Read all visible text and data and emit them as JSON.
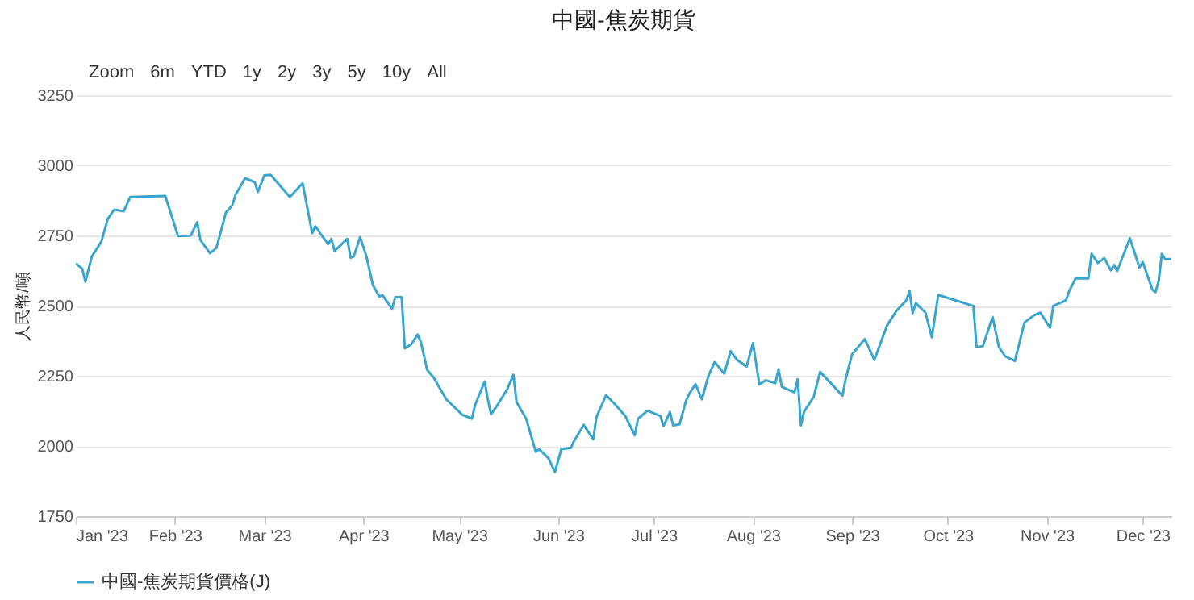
{
  "chart_data": {
    "type": "line",
    "title": "中國-焦炭期貨",
    "ylabel": "人民幣/噸",
    "annotations": [
      "Zoom",
      "6m",
      "YTD",
      "1y",
      "2y",
      "3y",
      "5y",
      "10y",
      "All"
    ],
    "x": [
      "2023-01-01",
      "2023-01-03",
      "2023-01-04",
      "2023-01-06",
      "2023-01-09",
      "2023-01-11",
      "2023-01-13",
      "2023-01-16",
      "2023-01-18",
      "2023-01-29",
      "2023-02-02",
      "2023-02-06",
      "2023-02-08",
      "2023-02-09",
      "2023-02-12",
      "2023-02-14",
      "2023-02-17",
      "2023-02-19",
      "2023-02-20",
      "2023-02-23",
      "2023-02-26",
      "2023-02-27",
      "2023-03-01",
      "2023-03-03",
      "2023-03-09",
      "2023-03-13",
      "2023-03-16",
      "2023-03-17",
      "2023-03-19",
      "2023-03-21",
      "2023-03-22",
      "2023-03-23",
      "2023-03-27",
      "2023-03-28",
      "2023-03-29",
      "2023-03-31",
      "2023-04-02",
      "2023-04-04",
      "2023-04-06",
      "2023-04-07",
      "2023-04-10",
      "2023-04-11",
      "2023-04-13",
      "2023-04-14",
      "2023-04-16",
      "2023-04-18",
      "2023-04-19",
      "2023-04-21",
      "2023-04-23",
      "2023-04-27",
      "2023-05-02",
      "2023-05-05",
      "2023-05-06",
      "2023-05-09",
      "2023-05-10",
      "2023-05-11",
      "2023-05-13",
      "2023-05-16",
      "2023-05-18",
      "2023-05-19",
      "2023-05-22",
      "2023-05-25",
      "2023-05-26",
      "2023-05-29",
      "2023-05-31",
      "2023-06-02",
      "2023-06-05",
      "2023-06-06",
      "2023-06-09",
      "2023-06-12",
      "2023-06-13",
      "2023-06-16",
      "2023-06-19",
      "2023-06-22",
      "2023-06-25",
      "2023-06-26",
      "2023-06-29",
      "2023-07-03",
      "2023-07-04",
      "2023-07-06",
      "2023-07-07",
      "2023-07-09",
      "2023-07-11",
      "2023-07-12",
      "2023-07-14",
      "2023-07-16",
      "2023-07-18",
      "2023-07-20",
      "2023-07-23",
      "2023-07-25",
      "2023-07-27",
      "2023-07-30",
      "2023-08-01",
      "2023-08-03",
      "2023-08-05",
      "2023-08-08",
      "2023-08-09",
      "2023-08-10",
      "2023-08-14",
      "2023-08-15",
      "2023-08-16",
      "2023-08-17",
      "2023-08-20",
      "2023-08-22",
      "2023-08-25",
      "2023-08-29",
      "2023-08-30",
      "2023-09-01",
      "2023-09-05",
      "2023-09-08",
      "2023-09-12",
      "2023-09-15",
      "2023-09-18",
      "2023-09-19",
      "2023-09-20",
      "2023-09-21",
      "2023-09-24",
      "2023-09-26",
      "2023-09-28",
      "2023-10-09",
      "2023-10-10",
      "2023-10-12",
      "2023-10-15",
      "2023-10-17",
      "2023-10-19",
      "2023-10-22",
      "2023-10-25",
      "2023-10-28",
      "2023-10-30",
      "2023-11-02",
      "2023-11-03",
      "2023-11-07",
      "2023-11-08",
      "2023-11-10",
      "2023-11-14",
      "2023-11-15",
      "2023-11-17",
      "2023-11-19",
      "2023-11-21",
      "2023-11-22",
      "2023-11-23",
      "2023-11-27",
      "2023-11-30",
      "2023-12-01",
      "2023-12-04",
      "2023-12-05",
      "2023-12-06",
      "2023-12-07",
      "2023-12-08",
      "2023-12-10"
    ],
    "series": [
      {
        "name": "中國-焦炭期貨價格(J)",
        "color": "#3aa5cc",
        "values": [
          2650,
          2632,
          2585,
          2675,
          2728,
          2809,
          2842,
          2836,
          2887,
          2891,
          2748,
          2750,
          2797,
          2734,
          2687,
          2705,
          2832,
          2858,
          2895,
          2954,
          2940,
          2905,
          2964,
          2966,
          2887,
          2936,
          2758,
          2783,
          2750,
          2719,
          2738,
          2695,
          2738,
          2671,
          2675,
          2744,
          2675,
          2573,
          2532,
          2538,
          2489,
          2530,
          2530,
          2348,
          2362,
          2397,
          2371,
          2271,
          2244,
          2166,
          2111,
          2097,
          2146,
          2230,
          2166,
          2113,
          2146,
          2201,
          2254,
          2156,
          2097,
          1979,
          1989,
          1956,
          1907,
          1989,
          1993,
          2018,
          2075,
          2024,
          2103,
          2181,
          2146,
          2107,
          2038,
          2097,
          2126,
          2107,
          2071,
          2121,
          2073,
          2077,
          2160,
          2185,
          2220,
          2166,
          2248,
          2299,
          2258,
          2338,
          2307,
          2283,
          2366,
          2219,
          2234,
          2224,
          2273,
          2211,
          2191,
          2238,
          2073,
          2122,
          2175,
          2264,
          2228,
          2179,
          2238,
          2326,
          2381,
          2307,
          2430,
          2483,
          2519,
          2552,
          2473,
          2509,
          2475,
          2387,
          2538,
          2499,
          2352,
          2356,
          2460,
          2352,
          2319,
          2303,
          2440,
          2466,
          2475,
          2421,
          2499,
          2519,
          2552,
          2597,
          2597,
          2685,
          2652,
          2670,
          2626,
          2645,
          2623,
          2740,
          2636,
          2656,
          2558,
          2548,
          2587,
          2685,
          2666,
          2666
        ]
      }
    ],
    "xlim": [
      "2023-01-01",
      "2023-12-10"
    ],
    "xticks": [
      {
        "value": "2023-01-01",
        "label": "Jan '23"
      },
      {
        "value": "2023-02-01",
        "label": "Feb '23"
      },
      {
        "value": "2023-03-01",
        "label": "Mar '23"
      },
      {
        "value": "2023-04-01",
        "label": "Apr '23"
      },
      {
        "value": "2023-05-01",
        "label": "May '23"
      },
      {
        "value": "2023-06-01",
        "label": "Jun '23"
      },
      {
        "value": "2023-07-01",
        "label": "Jul '23"
      },
      {
        "value": "2023-08-01",
        "label": "Aug '23"
      },
      {
        "value": "2023-09-01",
        "label": "Sep '23"
      },
      {
        "value": "2023-10-01",
        "label": "Oct '23"
      },
      {
        "value": "2023-11-01",
        "label": "Nov '23"
      },
      {
        "value": "2023-12-01",
        "label": "Dec '23"
      }
    ],
    "ylim": [
      1750,
      3250
    ],
    "yticks": [
      1750,
      2000,
      2250,
      2500,
      2750,
      3000,
      3250
    ],
    "grid": "y",
    "legend": "bottom",
    "marker": "none",
    "line_style": "solid"
  }
}
